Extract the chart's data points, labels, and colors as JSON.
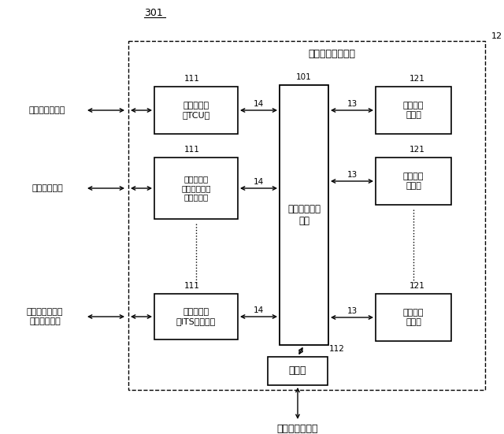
{
  "fig_width": 6.4,
  "fig_height": 5.51,
  "dpi": 100,
  "bg_color": "#ffffff",
  "title_301": "301",
  "label_12": "12",
  "outer_box_label": "車載ネットワーク",
  "gateway_label": "ゲートウェイ\n装置",
  "port_label": "ポート",
  "port_bottom_label": "整備用端末装置",
  "tcu_label": "車載通信機\n（TCU）",
  "short_range_label": "車載通信機\n（近距離無線\n端末装置）",
  "its_label": "車載通信機\n（ITS無線機）",
  "bus1_label": "バス接続\n装置群",
  "bus2_label": "バス接続\n装置群",
  "bus3_label": "バス接続\n装置群",
  "left_label1": "無線基地局装置",
  "left_label2": "無線端末装置",
  "left_label3": "路側機等または\n他の車載端末",
  "num_111_1": "111",
  "num_111_2": "111",
  "num_111_3": "111",
  "num_101": "101",
  "num_14_1": "14",
  "num_14_2": "14",
  "num_14_3": "14",
  "num_13_1": "13",
  "num_13_2": "13",
  "num_13_3": "13",
  "num_121_1": "121",
  "num_121_2": "121",
  "num_121_3": "121",
  "num_112": "112",
  "line_color": "#000000",
  "box_color": "#ffffff",
  "box_edge_color": "#000000"
}
